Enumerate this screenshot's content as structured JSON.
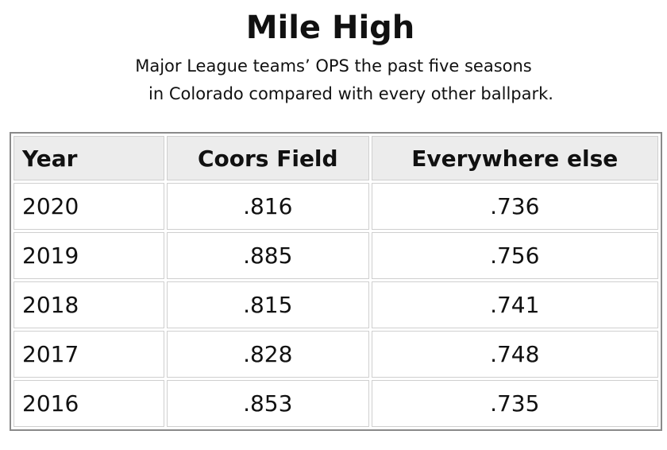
{
  "header": {
    "title": "Mile High",
    "subtitle": [
      "Major League teams’ OPS the past five seasons",
      "in Colorado compared with every other ballpark."
    ]
  },
  "table": {
    "columns": [
      "Year",
      "Coors Field",
      "Everywhere else"
    ],
    "rows": [
      [
        "2020",
        ".816",
        ".736"
      ],
      [
        "2019",
        ".885",
        ".756"
      ],
      [
        "2018",
        ".815",
        ".741"
      ],
      [
        "2017",
        ".828",
        ".748"
      ],
      [
        "2016",
        ".853",
        ".735"
      ]
    ]
  }
}
